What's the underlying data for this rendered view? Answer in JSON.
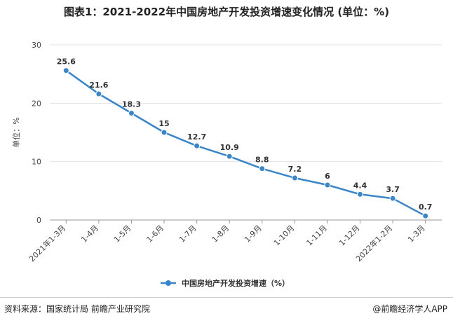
{
  "title": "图表1：2021-2022年中国房地产开发投资增速变化情况 (单位：%)",
  "footer": {
    "source": "资料来源：国家统计局 前瞻产业研究院",
    "app": "@前瞻经济学人APP"
  },
  "colors": {
    "series": "#3a86c8",
    "grid": "#e3e3e3",
    "axis": "#999999"
  },
  "chart_data": {
    "type": "line",
    "title": "图表1：2021-2022年中国房地产开发投资增速变化情况 (单位：%)",
    "ylabel": "单位：%",
    "xlabel": "",
    "ylim": [
      0,
      30
    ],
    "yticks": [
      0,
      10,
      20,
      30
    ],
    "grid": true,
    "legend_position": "bottom-center",
    "categories": [
      "2021年1-3月",
      "1-4月",
      "1-5月",
      "1-6月",
      "1-7月",
      "1-8月",
      "1-9月",
      "1-10月",
      "1-11月",
      "1-12月",
      "2022年1-2月",
      "1-3月"
    ],
    "series": [
      {
        "name": "中国房地产开发投资增速（%）",
        "values": [
          25.6,
          21.6,
          18.3,
          15,
          12.7,
          10.9,
          8.8,
          7.2,
          6,
          4.4,
          3.7,
          0.7
        ],
        "labels": [
          "25.6",
          "21.6",
          "18.3",
          "15",
          "12.7",
          "10.9",
          "8.8",
          "7.2",
          "6",
          "4.4",
          "3.7",
          "0.7"
        ]
      }
    ]
  }
}
